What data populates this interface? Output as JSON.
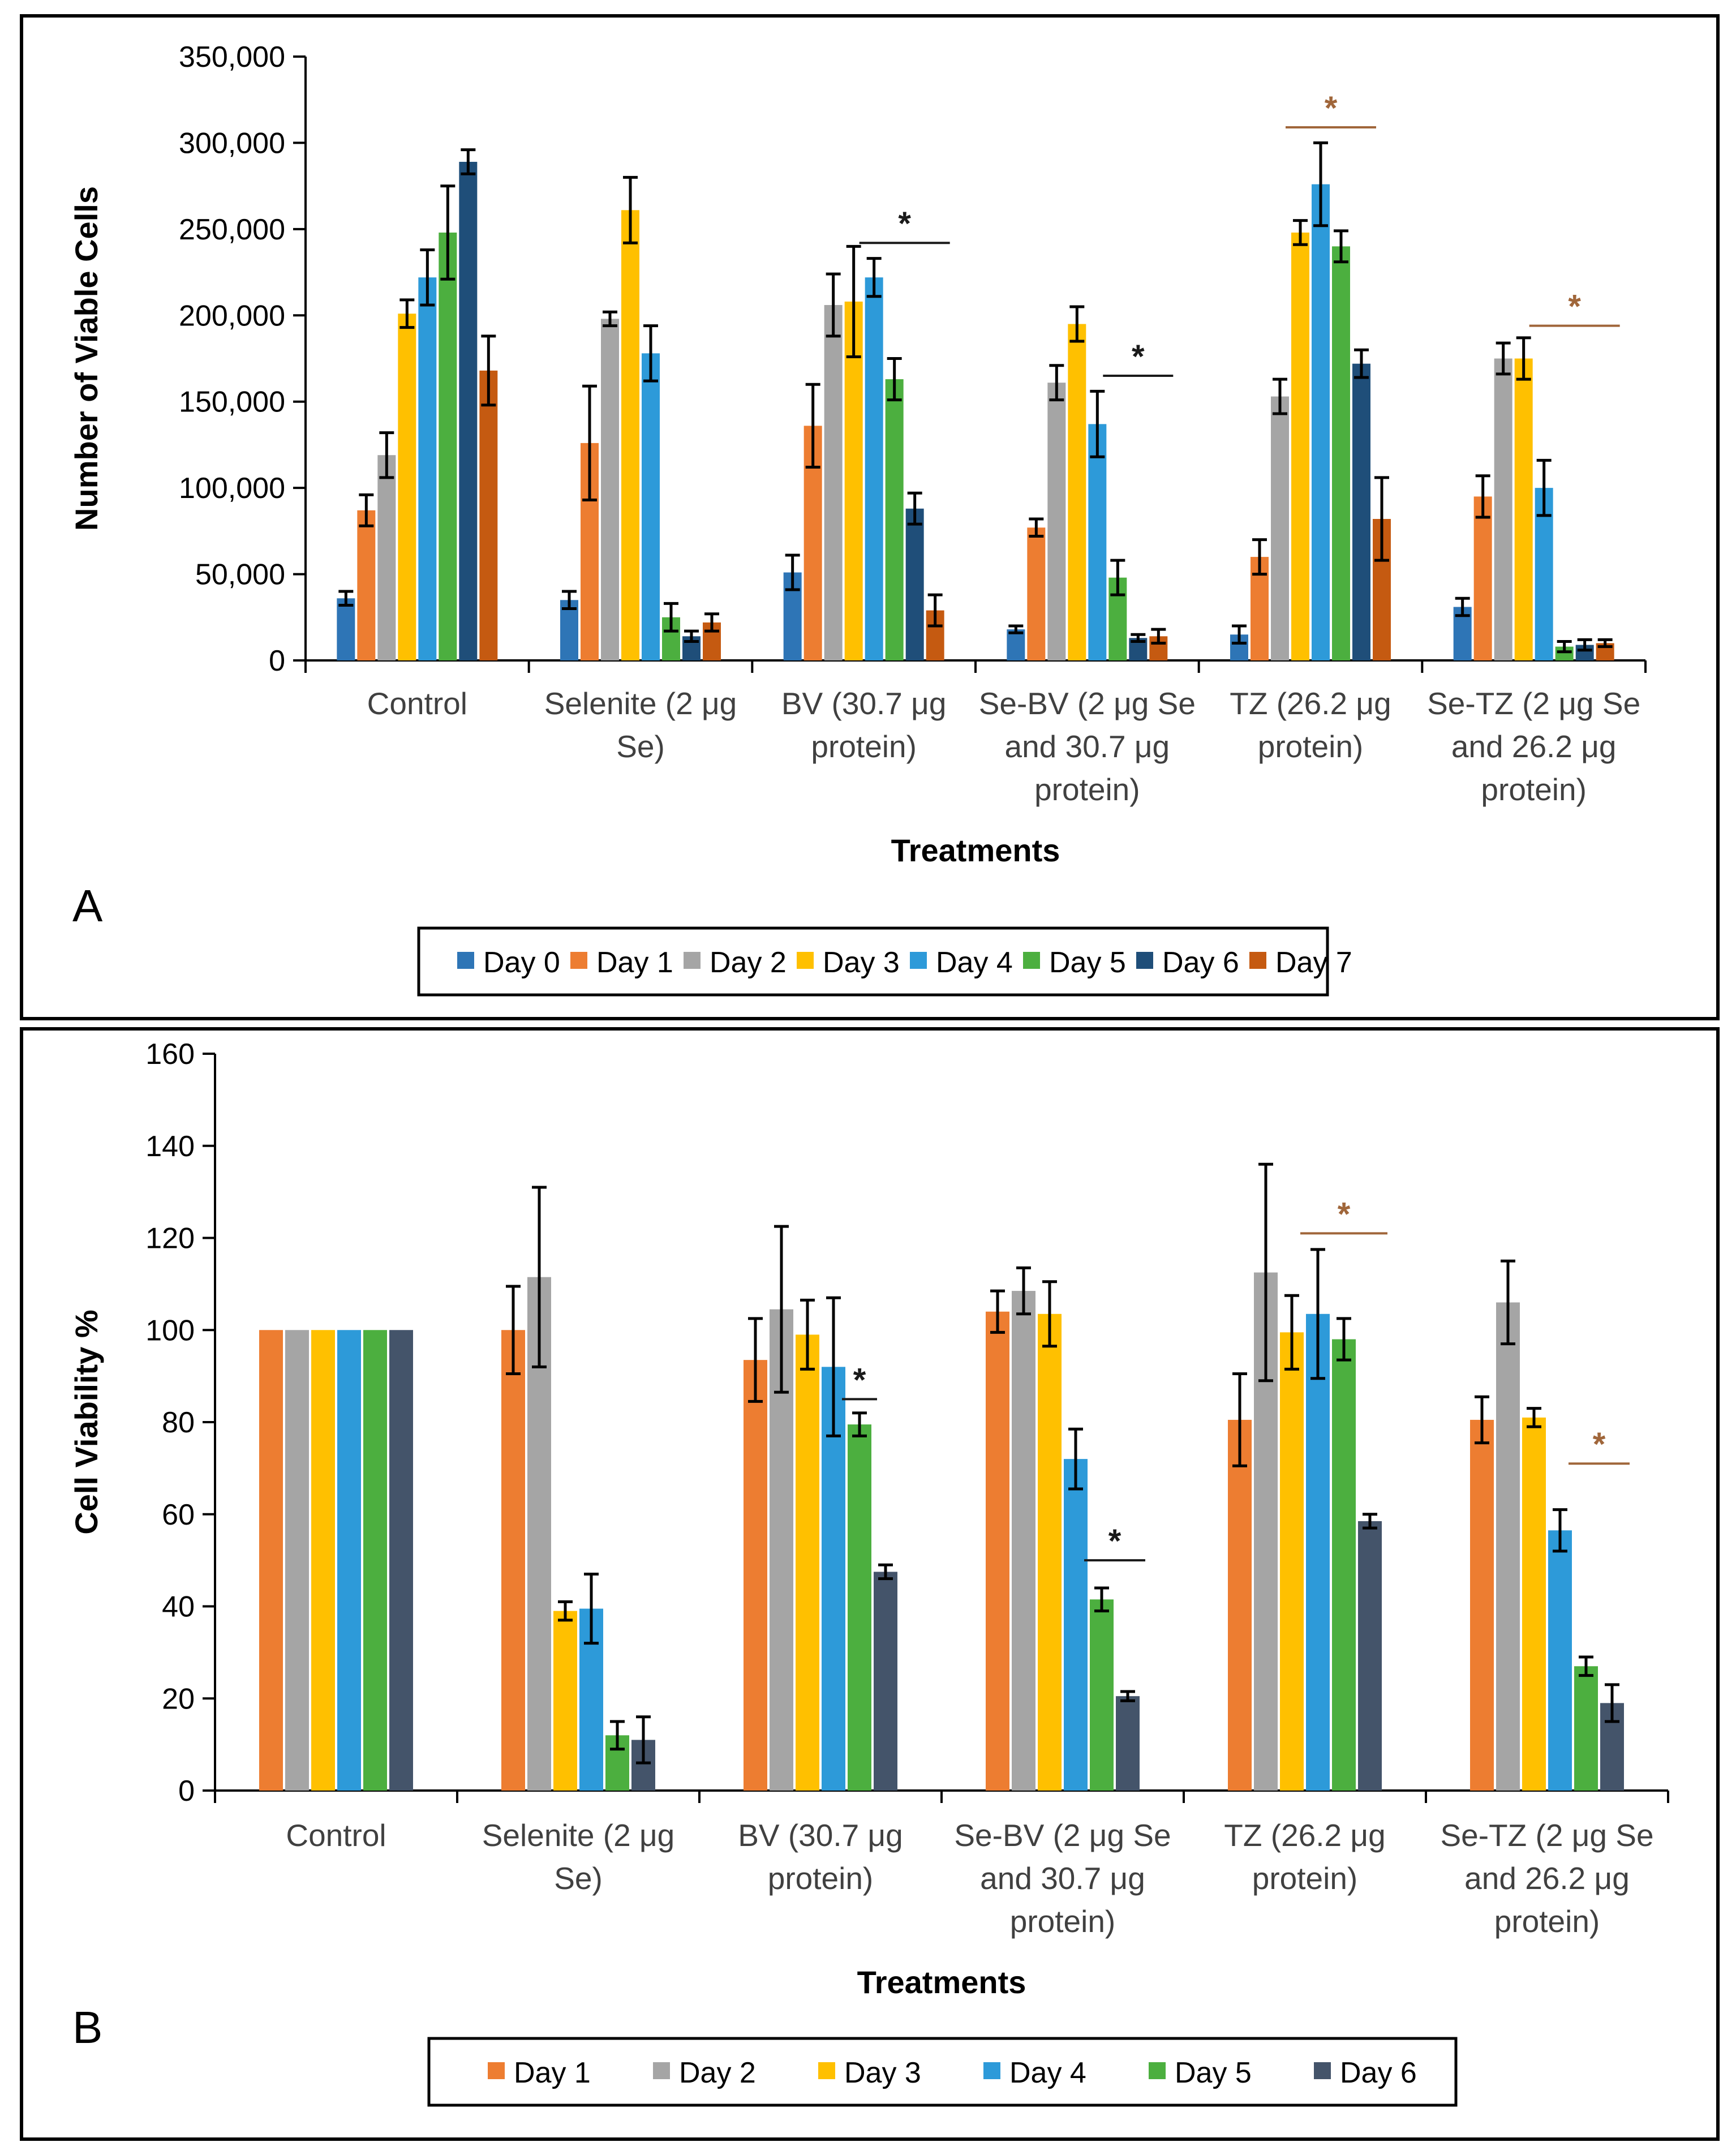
{
  "chart_data": [
    {
      "panel_label": "A",
      "type": "bar",
      "xlabel": "Treatments",
      "ylabel": "Number of Viable Cells",
      "ylim": [
        0,
        350000
      ],
      "y_ticks": [
        "0",
        "50,000",
        "100,000",
        "150,000",
        "200,000",
        "250,000",
        "300,000",
        "350,000"
      ],
      "categories": [
        [
          "Control"
        ],
        [
          "Selenite (2 μg",
          "Se)"
        ],
        [
          "BV (30.7 μg",
          "protein)"
        ],
        [
          "Se-BV (2 μg Se",
          "and 30.7 μg",
          "protein)"
        ],
        [
          "TZ (26.2 μg",
          "protein)"
        ],
        [
          "Se-TZ (2 μg Se",
          "and 26.2 μg",
          "protein)"
        ]
      ],
      "series": [
        {
          "name": "Day 0",
          "color": "#2E75B6",
          "values": [
            36000,
            35000,
            51000,
            18000,
            15000,
            31000
          ],
          "errors": [
            4000,
            5000,
            10000,
            2000,
            5000,
            5000
          ]
        },
        {
          "name": "Day 1",
          "color": "#ED7D31",
          "values": [
            87000,
            126000,
            136000,
            77000,
            60000,
            95000
          ],
          "errors": [
            9000,
            33000,
            24000,
            5000,
            10000,
            12000
          ]
        },
        {
          "name": "Day 2",
          "color": "#A5A5A5",
          "values": [
            119000,
            198000,
            206000,
            161000,
            153000,
            175000
          ],
          "errors": [
            13000,
            4000,
            18000,
            10000,
            10000,
            9000
          ]
        },
        {
          "name": "Day 3",
          "color": "#FFC000",
          "values": [
            201000,
            261000,
            208000,
            195000,
            248000,
            175000
          ],
          "errors": [
            8000,
            19000,
            32000,
            10000,
            7000,
            12000
          ]
        },
        {
          "name": "Day 4",
          "color": "#2D9AD9",
          "values": [
            222000,
            178000,
            222000,
            137000,
            276000,
            100000
          ],
          "errors": [
            16000,
            16000,
            11000,
            19000,
            24000,
            16000
          ]
        },
        {
          "name": "Day 5",
          "color": "#4CAF3F",
          "values": [
            248000,
            25000,
            163000,
            48000,
            240000,
            8000
          ],
          "errors": [
            27000,
            8000,
            12000,
            10000,
            9000,
            3000
          ]
        },
        {
          "name": "Day 6",
          "color": "#1F4E79",
          "values": [
            289000,
            14000,
            88000,
            13000,
            172000,
            9000
          ],
          "errors": [
            7000,
            3000,
            9000,
            2000,
            8000,
            3000
          ]
        },
        {
          "name": "Day 7",
          "color": "#C55A11",
          "values": [
            168000,
            22000,
            29000,
            14000,
            82000,
            10000
          ],
          "errors": [
            20000,
            5000,
            9000,
            4000,
            24000,
            2000
          ]
        }
      ],
      "significance": [
        {
          "category": 2,
          "from_series": 4,
          "to_series": 7,
          "label": "*",
          "color": "#1a1a1a",
          "y": 242000
        },
        {
          "category": 3,
          "from_series": 5,
          "to_series": 7,
          "label": "*",
          "color": "#1a1a1a",
          "y": 165000
        },
        {
          "category": 4,
          "from_series": 3,
          "to_series": 6,
          "label": "*",
          "color": "#A0663A",
          "y": 309000
        },
        {
          "category": 5,
          "from_series": 4,
          "to_series": 7,
          "label": "*",
          "color": "#A0663A",
          "y": 194000
        }
      ]
    },
    {
      "panel_label": "B",
      "type": "bar",
      "xlabel": "Treatments",
      "ylabel": "Cell Viability %",
      "ylim": [
        0,
        160
      ],
      "y_ticks": [
        "0",
        "20",
        "40",
        "60",
        "80",
        "100",
        "120",
        "140",
        "160"
      ],
      "categories": [
        [
          "Control"
        ],
        [
          "Selenite (2 μg",
          "Se)"
        ],
        [
          "BV (30.7 μg",
          "protein)"
        ],
        [
          "Se-BV (2 μg Se",
          "and 30.7 μg",
          "protein)"
        ],
        [
          "TZ (26.2 μg",
          "protein)"
        ],
        [
          "Se-TZ (2 μg Se",
          "and 26.2 μg",
          "protein)"
        ]
      ],
      "series": [
        {
          "name": "Day 1",
          "color": "#ED7D31",
          "values": [
            100,
            100,
            93.5,
            104,
            80.5,
            80.5
          ],
          "errors": [
            0,
            9.5,
            9,
            4.5,
            10,
            5
          ]
        },
        {
          "name": "Day 2",
          "color": "#A5A5A5",
          "values": [
            100,
            111.5,
            104.5,
            108.5,
            112.5,
            106
          ],
          "errors": [
            0,
            19.5,
            18,
            5,
            23.5,
            9
          ]
        },
        {
          "name": "Day 3",
          "color": "#FFC000",
          "values": [
            100,
            39,
            99,
            103.5,
            99.5,
            81
          ],
          "errors": [
            0,
            2,
            7.5,
            7,
            8,
            2
          ]
        },
        {
          "name": "Day 4",
          "color": "#2D9AD9",
          "values": [
            100,
            39.5,
            92,
            72,
            103.5,
            56.5
          ],
          "errors": [
            0,
            7.5,
            15,
            6.5,
            14,
            4.5
          ]
        },
        {
          "name": "Day 5",
          "color": "#4CAF3F",
          "values": [
            100,
            12,
            79.5,
            41.5,
            98,
            27
          ],
          "errors": [
            0,
            3,
            2.5,
            2.5,
            4.5,
            2
          ]
        },
        {
          "name": "Day 6",
          "color": "#44546A",
          "values": [
            100,
            11,
            47.5,
            20.5,
            58.5,
            19
          ],
          "errors": [
            0,
            5,
            1.5,
            1,
            1.5,
            4
          ]
        }
      ],
      "significance": [
        {
          "category": 2,
          "from_series": 4,
          "to_series": 4,
          "label": "*",
          "color": "#1a1a1a",
          "y": 85
        },
        {
          "category": 3,
          "from_series": 4,
          "to_series": 5,
          "label": "*",
          "color": "#1a1a1a",
          "y": 50
        },
        {
          "category": 4,
          "from_series": 3,
          "to_series": 5,
          "label": "*",
          "color": "#A0663A",
          "y": 121
        },
        {
          "category": 5,
          "from_series": 4,
          "to_series": 5,
          "label": "*",
          "color": "#A0663A",
          "y": 71
        }
      ]
    }
  ]
}
